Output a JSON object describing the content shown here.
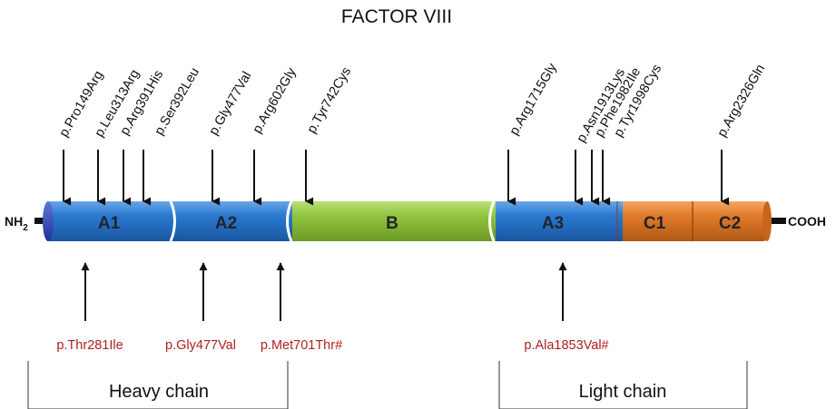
{
  "title": "FACTOR VIII",
  "terminals": {
    "n": "NH",
    "n_sub": "2",
    "c": "COOH"
  },
  "domains": [
    {
      "label": "A1",
      "color": "#1f6fc4"
    },
    {
      "label": "A2",
      "color": "#1f6fc4"
    },
    {
      "label": "B",
      "color": "#8cc43a"
    },
    {
      "label": "A3",
      "color": "#1f6fc4"
    },
    {
      "label": "C1",
      "color": "#e07a2a"
    },
    {
      "label": "C2",
      "color": "#e07a2a"
    }
  ],
  "top_mutations": [
    "p.Pro149Arg",
    "p.Leu313Arg",
    "p.Arg391His",
    "p.Ser392Leu",
    "p.Gly477Val",
    "p.Arg602Gly",
    "p.Tyr742Cys",
    "p.Arg1715Gly",
    "p.Asn1913Lys",
    "p.Phe1982Ile",
    "p.Tyr1998Cys",
    "p.Arg2326Gln"
  ],
  "bottom_mutations": [
    "p.Thr281Ile",
    "p.Gly477Val",
    "p.Met701Thr#",
    "p.Ala1853Val#"
  ],
  "chains": {
    "heavy": "Heavy chain",
    "light": "Light chain"
  },
  "colors": {
    "mutation_bottom": "#b0201d",
    "arrow": "#111111"
  }
}
